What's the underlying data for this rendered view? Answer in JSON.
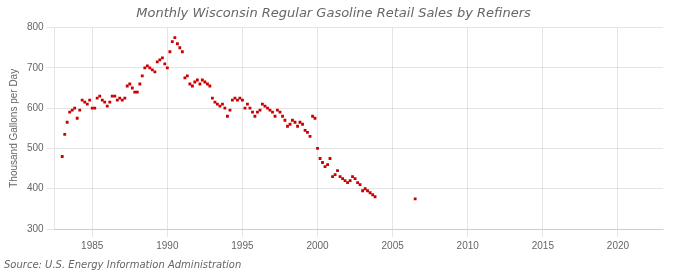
{
  "chart_data": {
    "type": "scatter",
    "title": "Monthly Wisconsin Regular Gasoline Retail Sales by Refiners",
    "ylabel": "Thousand Gallons per Day",
    "source": "Source: U.S. Energy Information Administration",
    "color": "#cc0000",
    "marker": "square",
    "grid": true,
    "xlim": [
      1982.5,
      2023
    ],
    "xticks": [
      1985,
      1990,
      1995,
      2000,
      2005,
      2010,
      2015,
      2020
    ],
    "ylim": [
      300,
      800
    ],
    "yticks": [
      300,
      400,
      500,
      600,
      700,
      800
    ],
    "x": [
      1983.0,
      1983.17,
      1983.33,
      1983.5,
      1983.67,
      1983.83,
      1984.0,
      1984.17,
      1984.33,
      1984.5,
      1984.67,
      1984.83,
      1985.0,
      1985.17,
      1985.33,
      1985.5,
      1985.67,
      1985.83,
      1986.0,
      1986.17,
      1986.33,
      1986.5,
      1986.67,
      1986.83,
      1987.0,
      1987.17,
      1987.33,
      1987.5,
      1987.67,
      1987.83,
      1988.0,
      1988.17,
      1988.33,
      1988.5,
      1988.67,
      1988.83,
      1989.0,
      1989.17,
      1989.33,
      1989.5,
      1989.67,
      1989.83,
      1990.0,
      1990.17,
      1990.33,
      1990.5,
      1990.67,
      1990.83,
      1991.0,
      1991.17,
      1991.33,
      1991.5,
      1991.67,
      1991.83,
      1992.0,
      1992.17,
      1992.33,
      1992.5,
      1992.67,
      1992.83,
      1993.0,
      1993.17,
      1993.33,
      1993.5,
      1993.67,
      1993.83,
      1994.0,
      1994.17,
      1994.33,
      1994.5,
      1994.67,
      1994.83,
      1995.0,
      1995.17,
      1995.33,
      1995.5,
      1995.67,
      1995.83,
      1996.0,
      1996.17,
      1996.33,
      1996.5,
      1996.67,
      1996.83,
      1997.0,
      1997.17,
      1997.33,
      1997.5,
      1997.67,
      1997.83,
      1998.0,
      1998.17,
      1998.33,
      1998.5,
      1998.67,
      1998.83,
      1999.0,
      1999.17,
      1999.33,
      1999.5,
      1999.67,
      1999.83,
      2000.0,
      2000.17,
      2000.33,
      2000.5,
      2000.67,
      2000.83,
      2001.0,
      2001.17,
      2001.33,
      2001.5,
      2001.67,
      2001.83,
      2002.0,
      2002.17,
      2002.33,
      2002.5,
      2002.67,
      2002.83,
      2003.0,
      2003.17,
      2003.33,
      2003.5,
      2003.67,
      2003.83,
      2006.5
    ],
    "values": [
      480,
      535,
      565,
      590,
      595,
      600,
      575,
      595,
      620,
      615,
      610,
      620,
      600,
      600,
      625,
      630,
      620,
      615,
      605,
      615,
      630,
      630,
      620,
      625,
      620,
      625,
      655,
      660,
      650,
      640,
      640,
      660,
      680,
      700,
      705,
      700,
      695,
      690,
      715,
      720,
      725,
      710,
      700,
      740,
      765,
      775,
      760,
      750,
      740,
      675,
      680,
      660,
      655,
      665,
      670,
      660,
      670,
      665,
      660,
      655,
      625,
      615,
      610,
      605,
      610,
      600,
      580,
      595,
      620,
      625,
      620,
      625,
      620,
      600,
      610,
      600,
      590,
      580,
      590,
      595,
      610,
      605,
      600,
      595,
      590,
      580,
      595,
      590,
      580,
      570,
      555,
      560,
      570,
      565,
      555,
      565,
      560,
      545,
      540,
      530,
      580,
      575,
      500,
      475,
      465,
      455,
      460,
      475,
      430,
      435,
      445,
      430,
      425,
      420,
      415,
      420,
      430,
      425,
      415,
      410,
      395,
      400,
      395,
      390,
      385,
      380,
      375
    ]
  }
}
